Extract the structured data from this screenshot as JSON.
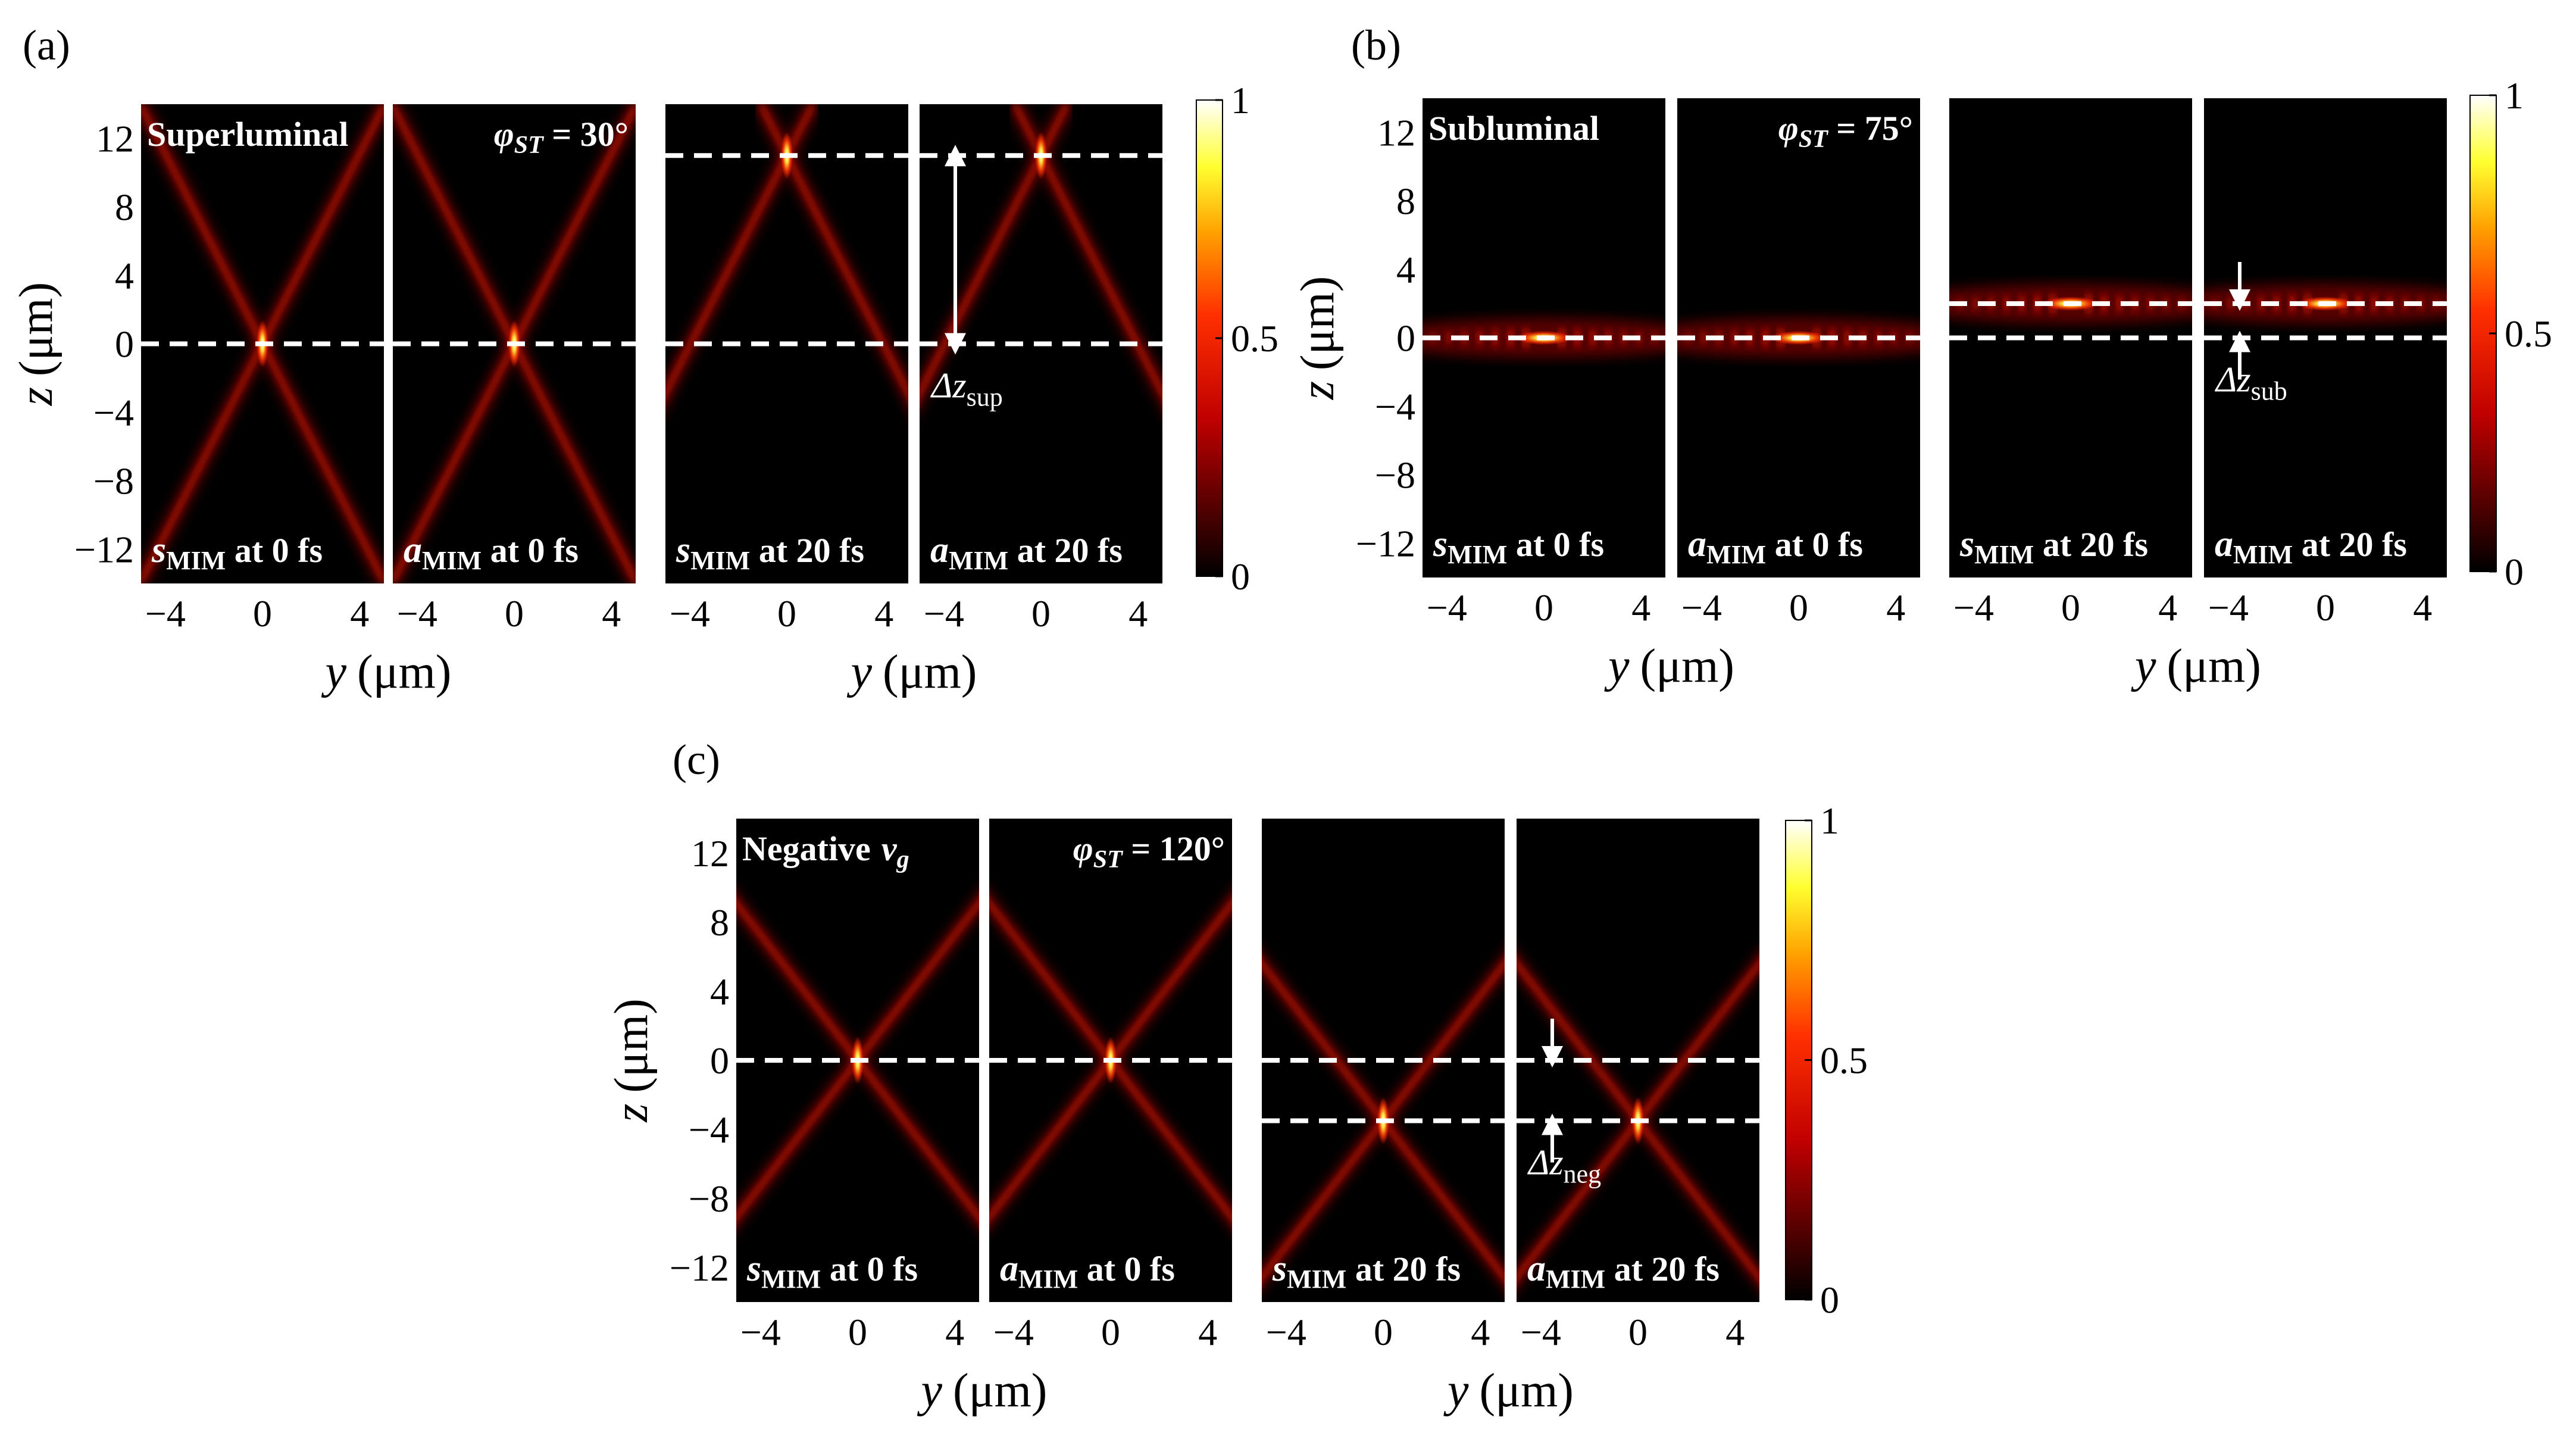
{
  "figure": {
    "colormap": {
      "name": "hot",
      "min": "0",
      "mid": "0.5",
      "max": "1"
    },
    "axis_labels": {
      "y_var": "y",
      "y_unit": "(μm)",
      "z_var": "z",
      "z_unit": "(μm)"
    },
    "z_ticks": [
      "12",
      "8",
      "4",
      "0",
      "−4",
      "−8",
      "−12"
    ],
    "y_ticks": [
      "−4",
      "0",
      "4"
    ],
    "panels": [
      {
        "id": "a",
        "label": "(a)",
        "regime": "Superluminal",
        "angle": {
          "sym": "φ",
          "sub": "ST",
          "value": " = 30°"
        },
        "frames": [
          {
            "field": "s",
            "sub": "MIM",
            "time": " at 0 fs"
          },
          {
            "field": "a",
            "sub": "MIM",
            "time": " at 0 fs"
          },
          {
            "field": "s",
            "sub": "MIM",
            "time": " at 20 fs"
          },
          {
            "field": "a",
            "sub": "MIM",
            "time": " at 20 fs"
          }
        ],
        "shift": {
          "sym": "Δz",
          "sub": "sup"
        }
      },
      {
        "id": "b",
        "label": "(b)",
        "regime": "Subluminal",
        "angle": {
          "sym": "φ",
          "sub": "ST",
          "value": " = 75°"
        },
        "frames": [
          {
            "field": "s",
            "sub": "MIM",
            "time": " at 0 fs"
          },
          {
            "field": "a",
            "sub": "MIM",
            "time": " at 0 fs"
          },
          {
            "field": "s",
            "sub": "MIM",
            "time": " at 20 fs"
          },
          {
            "field": "a",
            "sub": "MIM",
            "time": " at 20 fs"
          }
        ],
        "shift": {
          "sym": "Δz",
          "sub": "sub"
        }
      },
      {
        "id": "c",
        "label": "(c)",
        "regime": "Negative",
        "regime_var": "v",
        "regime_sub": "g",
        "angle": {
          "sym": "φ",
          "sub": "ST",
          "value": " = 120°"
        },
        "frames": [
          {
            "field": "s",
            "sub": "MIM",
            "time": " at 0 fs"
          },
          {
            "field": "a",
            "sub": "MIM",
            "time": " at 0 fs"
          },
          {
            "field": "s",
            "sub": "MIM",
            "time": " at 20 fs"
          },
          {
            "field": "a",
            "sub": "MIM",
            "time": " at 20 fs"
          }
        ],
        "shift": {
          "sym": "Δz",
          "sub": "neg"
        }
      }
    ]
  },
  "chart_data": [
    {
      "type": "heatmap",
      "panel": "(a)",
      "title": "Superluminal, φST = 30°",
      "xlabel": "y (μm)",
      "ylabel": "z (μm)",
      "xlim": [
        -5,
        5
      ],
      "ylim": [
        -14,
        14
      ],
      "z_ticks": [
        12,
        8,
        4,
        0,
        -4,
        -8,
        -12
      ],
      "y_ticks": [
        -4,
        0,
        4
      ],
      "color_range": [
        0,
        1
      ],
      "pattern": "x_shaped_beam",
      "cone_half_width_per_um": 0.36,
      "frames": [
        {
          "label": "sMIM at 0 fs",
          "peak_z": 0,
          "marker_lines_z": [
            0
          ]
        },
        {
          "label": "aMIM at 0 fs",
          "peak_z": 0,
          "marker_lines_z": [
            0
          ]
        },
        {
          "label": "sMIM at 20 fs",
          "peak_z": 11,
          "marker_lines_z": [
            11,
            0
          ]
        },
        {
          "label": "aMIM at 20 fs",
          "peak_z": 11,
          "marker_lines_z": [
            11,
            0
          ]
        }
      ],
      "annotation": {
        "label": "Δz_sup",
        "from_z": 0,
        "to_z": 11
      }
    },
    {
      "type": "heatmap",
      "panel": "(b)",
      "title": "Subluminal, φST = 75°",
      "xlabel": "y (μm)",
      "ylabel": "z (μm)",
      "xlim": [
        -5,
        5
      ],
      "ylim": [
        -14,
        14
      ],
      "z_ticks": [
        12,
        8,
        4,
        0,
        -4,
        -8,
        -12
      ],
      "y_ticks": [
        -4,
        0,
        4
      ],
      "color_range": [
        0,
        1
      ],
      "pattern": "horizontal_band",
      "frames": [
        {
          "label": "sMIM at 0 fs",
          "peak_z": 0,
          "marker_lines_z": [
            0
          ]
        },
        {
          "label": "aMIM at 0 fs",
          "peak_z": 0,
          "marker_lines_z": [
            0
          ]
        },
        {
          "label": "sMIM at 20 fs",
          "peak_z": 2,
          "marker_lines_z": [
            2,
            0
          ]
        },
        {
          "label": "aMIM at 20 fs",
          "peak_z": 2,
          "marker_lines_z": [
            2,
            0
          ]
        }
      ],
      "annotation": {
        "label": "Δz_sub",
        "from_z": 0,
        "to_z": 2
      }
    },
    {
      "type": "heatmap",
      "panel": "(c)",
      "title": "Negative vg, φST = 120°",
      "xlabel": "y (μm)",
      "ylabel": "z (μm)",
      "xlim": [
        -5,
        5
      ],
      "ylim": [
        -14,
        14
      ],
      "z_ticks": [
        12,
        8,
        4,
        0,
        -4,
        -8,
        -12
      ],
      "y_ticks": [
        -4,
        0,
        4
      ],
      "color_range": [
        0,
        1
      ],
      "pattern": "x_shaped_beam",
      "cone_half_width_per_um": 0.55,
      "frames": [
        {
          "label": "sMIM at 0 fs",
          "peak_z": 0,
          "marker_lines_z": [
            0
          ]
        },
        {
          "label": "aMIM at 0 fs",
          "peak_z": 0,
          "marker_lines_z": [
            0
          ]
        },
        {
          "label": "sMIM at 20 fs",
          "peak_z": -3.5,
          "marker_lines_z": [
            0,
            -3.5
          ]
        },
        {
          "label": "aMIM at 20 fs",
          "peak_z": -3.5,
          "marker_lines_z": [
            0,
            -3.5
          ]
        }
      ],
      "annotation": {
        "label": "Δz_neg",
        "from_z": 0,
        "to_z": -3.5
      }
    }
  ]
}
